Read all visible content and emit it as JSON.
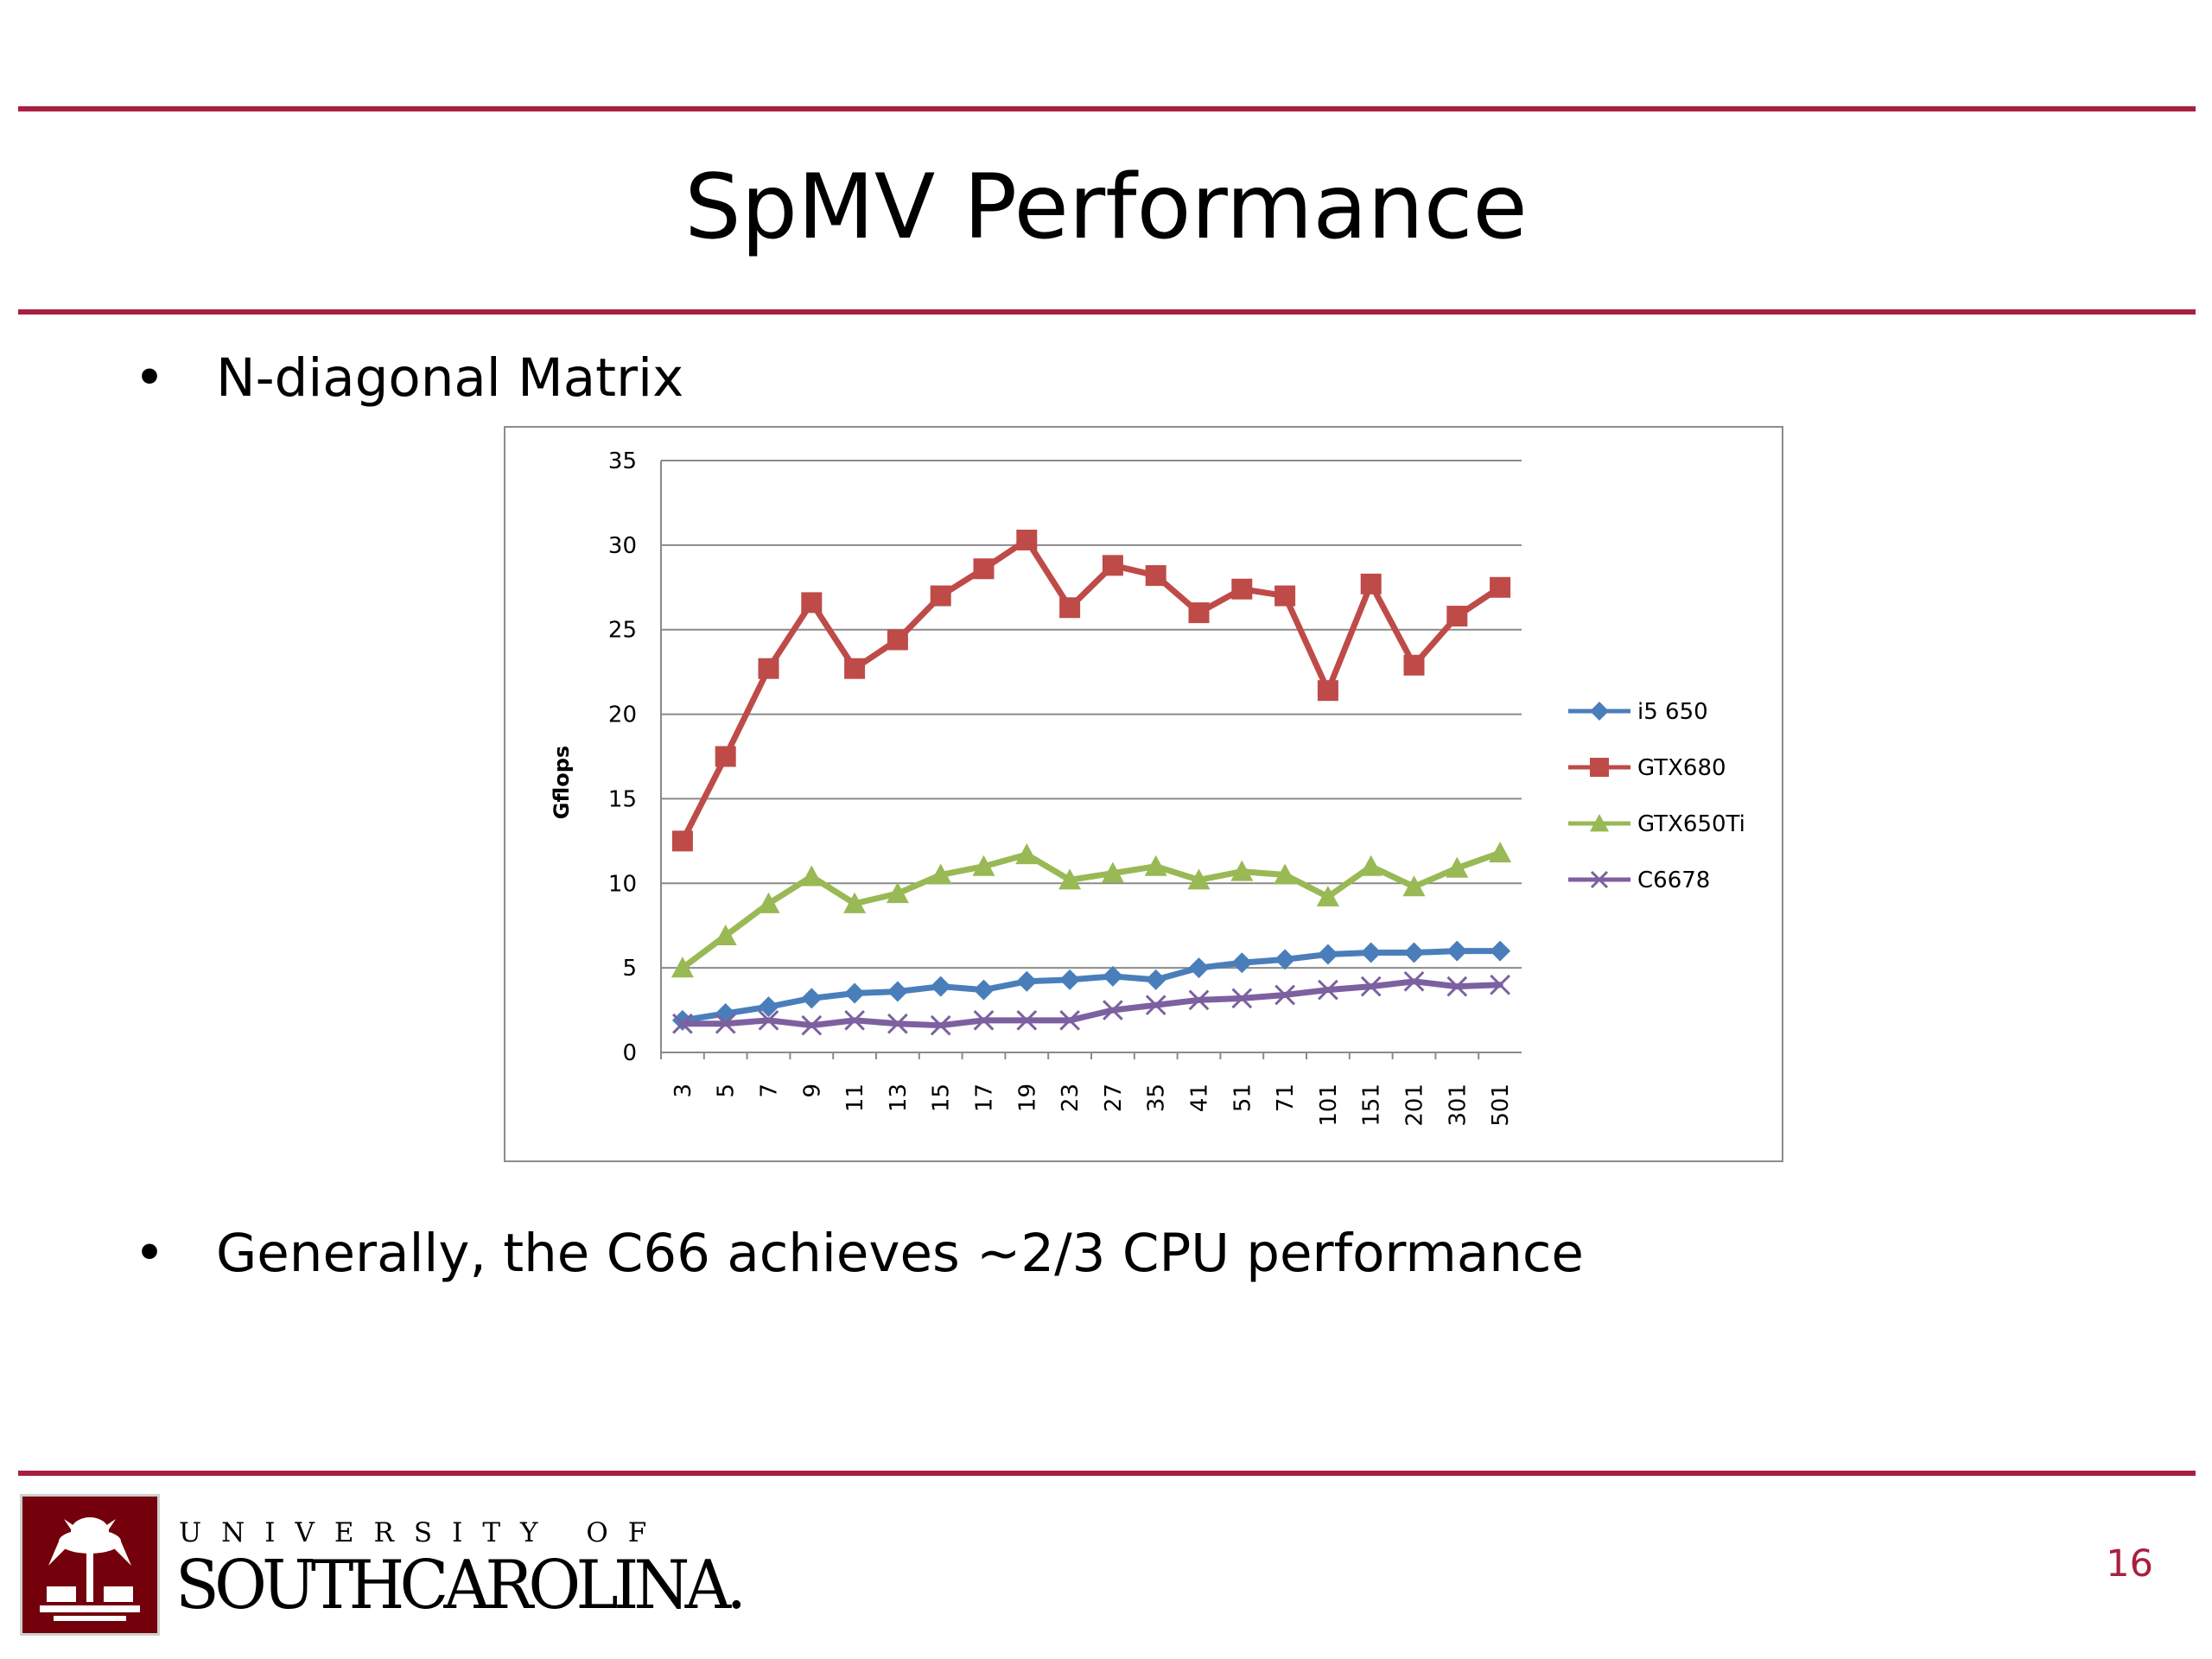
{
  "slide": {
    "title": "SpMV Performance",
    "bullets": [
      "N-diagonal Matrix",
      "Generally, the C66 achieves ~2/3 CPU performance"
    ],
    "page_number": "16"
  },
  "footer": {
    "university_line": "UNIVERSITY OF",
    "university_name": "SOUTHCAROLINA."
  },
  "colors": {
    "accent": "#a8203f",
    "i5": "#4a7ebb",
    "gtx680": "#be4b48",
    "gtx650": "#98b954",
    "c6678": "#7d60a0"
  },
  "chart_data": {
    "type": "line",
    "title": "",
    "xlabel": "",
    "ylabel": "Gflops",
    "ylim": [
      0,
      35
    ],
    "yticks": [
      0,
      5,
      10,
      15,
      20,
      25,
      30,
      35
    ],
    "grid": true,
    "legend_position": "right",
    "categories": [
      "3",
      "5",
      "7",
      "9",
      "11",
      "13",
      "15",
      "17",
      "19",
      "23",
      "27",
      "35",
      "41",
      "51",
      "71",
      "101",
      "151",
      "201",
      "301",
      "501"
    ],
    "series": [
      {
        "name": "i5 650",
        "marker": "diamond",
        "values": [
          1.9,
          2.3,
          2.7,
          3.2,
          3.5,
          3.6,
          3.9,
          3.7,
          4.2,
          4.3,
          4.5,
          4.3,
          5.0,
          5.3,
          5.5,
          5.8,
          5.9,
          5.9,
          6.0,
          6.0
        ]
      },
      {
        "name": "GTX680",
        "marker": "square",
        "values": [
          12.5,
          17.5,
          22.7,
          26.6,
          22.7,
          24.4,
          27.0,
          28.6,
          30.3,
          26.3,
          28.8,
          28.2,
          26.0,
          27.4,
          27.0,
          21.4,
          27.7,
          22.9,
          25.8,
          27.5
        ]
      },
      {
        "name": "GTX650Ti",
        "marker": "triangle",
        "values": [
          5.0,
          6.9,
          8.8,
          10.4,
          8.8,
          9.4,
          10.5,
          11.0,
          11.7,
          10.2,
          10.6,
          11.0,
          10.2,
          10.7,
          10.5,
          9.2,
          11.0,
          9.8,
          10.9,
          11.8
        ]
      },
      {
        "name": "C6678",
        "marker": "x",
        "values": [
          1.7,
          1.7,
          1.9,
          1.6,
          1.9,
          1.7,
          1.6,
          1.9,
          1.9,
          1.9,
          2.5,
          2.8,
          3.1,
          3.2,
          3.4,
          3.7,
          3.9,
          4.2,
          3.9,
          4.0
        ]
      }
    ]
  }
}
